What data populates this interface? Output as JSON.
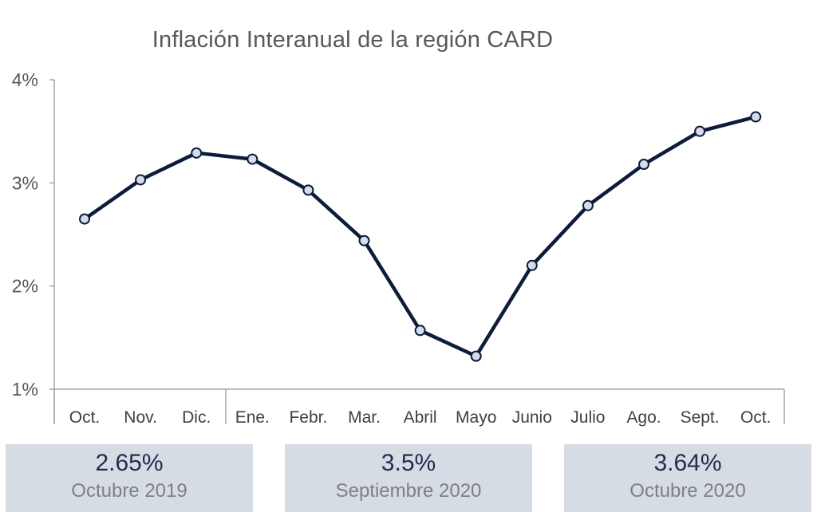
{
  "chart_data": {
    "type": "line",
    "title": "Inflación Interanual de la región CARD",
    "categories": [
      "Oct.",
      "Nov.",
      "Dic.",
      "Ene.",
      "Febr.",
      "Mar.",
      "Abril",
      "Mayo",
      "Junio",
      "Julio",
      "Ago.",
      "Sept.",
      "Oct."
    ],
    "series": [
      {
        "values": [
          2.65,
          3.03,
          3.29,
          3.23,
          2.93,
          2.44,
          1.57,
          1.32,
          2.2,
          2.78,
          3.18,
          3.5,
          3.64
        ]
      }
    ],
    "y_ticks": [
      "1%",
      "2%",
      "3%",
      "4%"
    ],
    "ylim": [
      1,
      4
    ],
    "grid": false,
    "legend": "none",
    "line_color": "#0d1c3a",
    "marker_fill": "#d6dcea"
  },
  "stats": [
    {
      "value": "2.65%",
      "label": "Octubre 2019"
    },
    {
      "value": "3.5%",
      "label": "Septiembre 2020"
    },
    {
      "value": "3.64%",
      "label": "Octubre 2020"
    }
  ]
}
